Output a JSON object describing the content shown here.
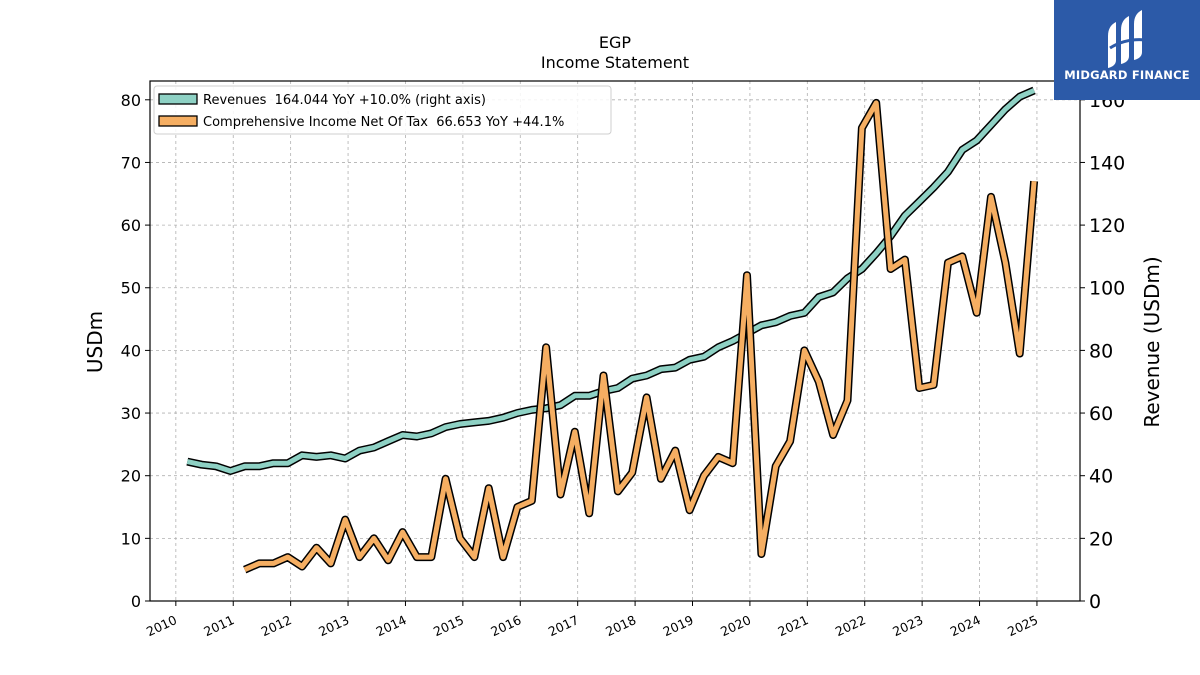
{
  "chart_data": {
    "type": "line",
    "title": "EGP",
    "subtitle": "Income Statement",
    "ylabel_left": "USDm",
    "ylabel_right": "Revenue (USDm)",
    "ylim_left": [
      0,
      83
    ],
    "ylim_right": [
      0,
      166
    ],
    "yticks_left": [
      "0",
      "10",
      "20",
      "30",
      "40",
      "50",
      "60",
      "70",
      "80"
    ],
    "yticks_right": [
      "0",
      "20",
      "40",
      "60",
      "80",
      "100",
      "120",
      "140",
      "160"
    ],
    "xlim": [
      2009.55,
      2025.75
    ],
    "xticks": [
      "2010",
      "2011",
      "2012",
      "2013",
      "2014",
      "2015",
      "2016",
      "2017",
      "2018",
      "2019",
      "2020",
      "2021",
      "2022",
      "2023",
      "2024",
      "2025"
    ],
    "grid": true,
    "legend_position": "top-left",
    "series": [
      {
        "name": "Revenues  164.044 YoY +10.0% (right axis)",
        "axis": "right",
        "color": "#8ed1c4",
        "x": [
          2010.2,
          2010.45,
          2010.7,
          2010.95,
          2011.2,
          2011.45,
          2011.7,
          2011.95,
          2012.2,
          2012.45,
          2012.7,
          2012.95,
          2013.2,
          2013.45,
          2013.7,
          2013.95,
          2014.2,
          2014.45,
          2014.7,
          2014.95,
          2015.2,
          2015.45,
          2015.7,
          2015.95,
          2016.2,
          2016.45,
          2016.7,
          2016.95,
          2017.2,
          2017.45,
          2017.7,
          2017.95,
          2018.2,
          2018.45,
          2018.7,
          2018.95,
          2019.2,
          2019.45,
          2019.7,
          2019.95,
          2020.2,
          2020.45,
          2020.7,
          2020.95,
          2021.2,
          2021.45,
          2021.7,
          2021.95,
          2022.2,
          2022.45,
          2022.7,
          2022.95,
          2023.2,
          2023.45,
          2023.7,
          2023.95,
          2024.2,
          2024.45,
          2024.7,
          2024.95
        ],
        "values": [
          44.5,
          43.5,
          43,
          41.5,
          43,
          43,
          44,
          44,
          46.5,
          46,
          46.5,
          45.5,
          48,
          49,
          51,
          53,
          52.5,
          53.5,
          55.5,
          56.5,
          57,
          57.5,
          58.5,
          60,
          61,
          61.5,
          62.5,
          65.5,
          65.5,
          67,
          68,
          71,
          72,
          74,
          74.5,
          77,
          78,
          81,
          83,
          85.5,
          88,
          89,
          91,
          92,
          97,
          98.5,
          103,
          106,
          111,
          116.5,
          123,
          127.5,
          132,
          137,
          144,
          147,
          152,
          157,
          161,
          163
        ]
      },
      {
        "name": "Comprehensive Income Net Of Tax  66.653 YoY +44.1%",
        "axis": "left",
        "color": "#f5ae62",
        "x": [
          2011.2,
          2011.45,
          2011.7,
          2011.95,
          2012.2,
          2012.45,
          2012.7,
          2012.95,
          2013.2,
          2013.45,
          2013.7,
          2013.95,
          2014.2,
          2014.45,
          2014.7,
          2014.95,
          2015.2,
          2015.45,
          2015.7,
          2015.95,
          2016.2,
          2016.45,
          2016.7,
          2016.95,
          2017.2,
          2017.45,
          2017.7,
          2017.95,
          2018.2,
          2018.45,
          2018.7,
          2018.95,
          2019.2,
          2019.45,
          2019.7,
          2019.95,
          2020.2,
          2020.45,
          2020.7,
          2020.95,
          2021.2,
          2021.45,
          2021.7,
          2021.95,
          2022.2,
          2022.45,
          2022.7,
          2022.95,
          2023.2,
          2023.45,
          2023.7,
          2023.95,
          2024.2,
          2024.45,
          2024.7,
          2024.95
        ],
        "values": [
          5,
          6,
          6,
          7,
          5.5,
          8.5,
          6,
          13,
          7,
          10,
          6.5,
          11,
          7,
          7,
          19.5,
          10,
          7,
          18,
          7,
          15,
          16,
          40.5,
          17,
          27,
          14,
          36,
          17.5,
          20.5,
          32.5,
          19.5,
          24,
          14.5,
          20,
          23,
          22,
          52,
          7.5,
          21.5,
          25.5,
          40,
          35,
          26.5,
          32,
          75.5,
          79.5,
          53,
          54.5,
          34,
          34.5,
          54,
          55,
          46,
          64.5,
          54,
          39.5,
          67
        ]
      }
    ]
  },
  "branding": {
    "logo_text": "MIDGARD FINANCE",
    "logo_bg": "#2c5aa8"
  }
}
